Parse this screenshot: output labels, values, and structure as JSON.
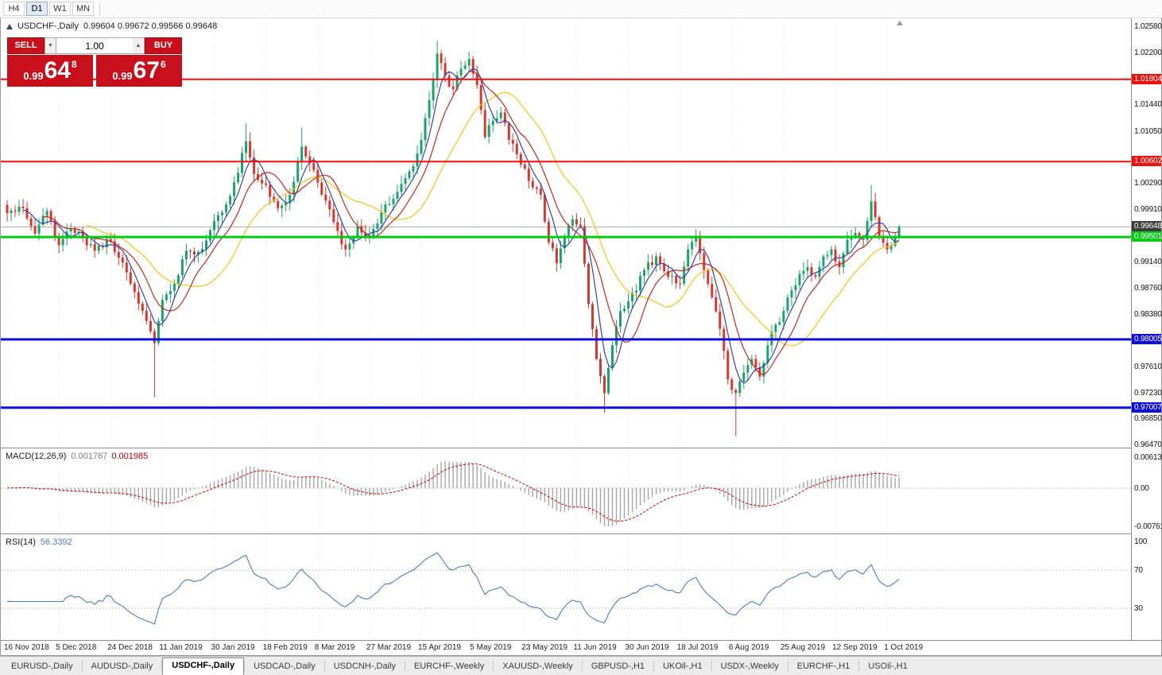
{
  "toolbar": {
    "timeframes": [
      {
        "label": "H4",
        "active": false
      },
      {
        "label": "D1",
        "active": true
      },
      {
        "label": "W1",
        "active": false
      },
      {
        "label": "MN",
        "active": false
      }
    ]
  },
  "chart": {
    "symbol": "USDCHF-,Daily",
    "ohlc_text": "0.99604 0.99672 0.99566 0.99648"
  },
  "trade_panel": {
    "sell_label": "SELL",
    "buy_label": "BUY",
    "volume": "1.00",
    "sell_price": {
      "prefix": "0.99",
      "big": "64",
      "sup": "8"
    },
    "buy_price": {
      "prefix": "0.99",
      "big": "67",
      "sup": "6"
    },
    "panel_color": "#c8101c"
  },
  "macd": {
    "label": "MACD(12,26,9)",
    "value_main": "0.001767",
    "value_signal": "0.001985",
    "scale": [
      {
        "label": "0.00613",
        "v": 0.00613
      },
      {
        "label": "0.00",
        "v": 0
      },
      {
        "label": "-0.00761",
        "v": -0.00761
      }
    ]
  },
  "rsi": {
    "label": "RSI(14)",
    "value": "56.3392",
    "color": "#4a7ebc",
    "scale": [
      {
        "label": "100",
        "v": 100
      },
      {
        "label": "70",
        "v": 70
      },
      {
        "label": "30",
        "v": 30
      }
    ]
  },
  "x_axis": {
    "labels": [
      {
        "label": "16 Nov 2018",
        "i": 0
      },
      {
        "label": "5 Dec 2018",
        "i": 13
      },
      {
        "label": "24 Dec 2018",
        "i": 26
      },
      {
        "label": "11 Jan 2019",
        "i": 39
      },
      {
        "label": "30 Jan 2019",
        "i": 52
      },
      {
        "label": "18 Feb 2019",
        "i": 65
      },
      {
        "label": "8 Mar 2019",
        "i": 78
      },
      {
        "label": "27 Mar 2019",
        "i": 91
      },
      {
        "label": "15 Apr 2019",
        "i": 104
      },
      {
        "label": "5 May 2019",
        "i": 117
      },
      {
        "label": "23 May 2019",
        "i": 130
      },
      {
        "label": "11 Jun 2019",
        "i": 143
      },
      {
        "label": "30 Jun 2019",
        "i": 156
      },
      {
        "label": "18 Jul 2019",
        "i": 169
      },
      {
        "label": "6 Aug 2019",
        "i": 182
      },
      {
        "label": "25 Aug 2019",
        "i": 195
      },
      {
        "label": "12 Sep 2019",
        "i": 208
      },
      {
        "label": "1 Oct 2019",
        "i": 221
      }
    ]
  },
  "tabs": [
    {
      "label": "EURUSD-,Daily",
      "active": false
    },
    {
      "label": "AUDUSD-,Daily",
      "active": false
    },
    {
      "label": "USDCHF-,Daily",
      "active": true
    },
    {
      "label": "USDCAD-,Daily",
      "active": false
    },
    {
      "label": "USDCNH-,Daily",
      "active": false
    },
    {
      "label": "EURCHF-,Weekly",
      "active": false
    },
    {
      "label": "XAUUSD-,Weekly",
      "active": false
    },
    {
      "label": "GBPUSD-,H1",
      "active": false
    },
    {
      "label": "UKOil-,H1",
      "active": false
    },
    {
      "label": "USDX-,Weekly",
      "active": false
    },
    {
      "label": "EURCHF-,H1",
      "active": false
    },
    {
      "label": "USOil-,H1",
      "active": false
    }
  ],
  "chart_data": {
    "type": "candlestick",
    "symbol": "USDCHF",
    "timeframe": "Daily",
    "current_bar": {
      "open": 0.99604,
      "high": 0.99672,
      "low": 0.99566,
      "close": 0.99648
    },
    "y_range": {
      "top": 1.0258,
      "bottom": 0.9647
    },
    "price_ticks": [
      {
        "label": "1.02580",
        "price": 1.0258
      },
      {
        "label": "1.02200",
        "price": 1.022
      },
      {
        "label": "1.01440",
        "price": 1.0144
      },
      {
        "label": "1.01050",
        "price": 1.0105
      },
      {
        "label": "1.00290",
        "price": 1.0029
      },
      {
        "label": "0.99910",
        "price": 0.9991
      },
      {
        "label": "0.99140",
        "price": 0.9914
      },
      {
        "label": "0.98760",
        "price": 0.9876
      },
      {
        "label": "0.98380",
        "price": 0.9838
      },
      {
        "label": "0.97610",
        "price": 0.9761
      },
      {
        "label": "0.97230",
        "price": 0.9723
      },
      {
        "label": "0.96850",
        "price": 0.9685
      },
      {
        "label": "0.96470",
        "price": 0.9647
      }
    ],
    "hlines": [
      {
        "price": 1.01804,
        "color": "#ee0f0f",
        "width": 2,
        "label": "1.01804"
      },
      {
        "price": 1.00602,
        "color": "#ee0f0f",
        "width": 2,
        "label": "1.00602"
      },
      {
        "price": 0.99501,
        "color": "#00cc11",
        "width": 3,
        "label": "0.99501"
      },
      {
        "price": 0.98005,
        "color": "#0d0de0",
        "width": 3,
        "label": "0.98005"
      },
      {
        "price": 0.97007,
        "color": "#0d0de0",
        "width": 3,
        "label": "0.97007"
      }
    ],
    "price_line": {
      "price": 0.99648,
      "color": "#ababab",
      "label": "0.99648",
      "label_bg": "#3c3c3c"
    },
    "colors": {
      "up": "#1ca26c",
      "down": "#d7382e"
    },
    "moving_averages": [
      {
        "period": 21,
        "color": "#f5c518"
      },
      {
        "period": 10,
        "color": "#c8281e"
      },
      {
        "period": 5,
        "color": "#3642a8"
      }
    ],
    "candles": {
      "count": 225,
      "seed": 11,
      "noise": 0.0013,
      "anchors": [
        [
          0,
          0.9985
        ],
        [
          4,
          0.9992
        ],
        [
          7,
          0.9955
        ],
        [
          10,
          0.9988
        ],
        [
          13,
          0.9938
        ],
        [
          16,
          0.9962
        ],
        [
          19,
          0.995
        ],
        [
          22,
          0.993
        ],
        [
          25,
          0.9947
        ],
        [
          28,
          0.992
        ],
        [
          31,
          0.9882
        ],
        [
          34,
          0.9842
        ],
        [
          37,
          0.9795
        ],
        [
          39,
          0.9858
        ],
        [
          42,
          0.9882
        ],
        [
          45,
          0.993
        ],
        [
          48,
          0.9928
        ],
        [
          51,
          0.996
        ],
        [
          54,
          0.9986
        ],
        [
          57,
          1.003
        ],
        [
          60,
          1.009
        ],
        [
          62,
          1.0042
        ],
        [
          65,
          1.0026
        ],
        [
          68,
          0.9992
        ],
        [
          71,
          1.0012
        ],
        [
          74,
          1.0082
        ],
        [
          76,
          1.0058
        ],
        [
          79,
          1.0012
        ],
        [
          82,
          0.9972
        ],
        [
          85,
          0.9932
        ],
        [
          88,
          0.9966
        ],
        [
          91,
          0.9952
        ],
        [
          94,
          0.9986
        ],
        [
          97,
          1.0006
        ],
        [
          100,
          1.0036
        ],
        [
          103,
          1.0072
        ],
        [
          106,
          1.015
        ],
        [
          108,
          1.0218
        ],
        [
          110,
          1.0186
        ],
        [
          112,
          1.0166
        ],
        [
          114,
          1.0196
        ],
        [
          116,
          1.021
        ],
        [
          118,
          1.0172
        ],
        [
          120,
          1.0096
        ],
        [
          122,
          1.012
        ],
        [
          124,
          1.0132
        ],
        [
          126,
          1.0092
        ],
        [
          129,
          1.0056
        ],
        [
          131,
          1.0032
        ],
        [
          134,
          1.0012
        ],
        [
          136,
          0.9942
        ],
        [
          138,
          0.9912
        ],
        [
          140,
          0.9952
        ],
        [
          142,
          0.9976
        ],
        [
          144,
          0.9966
        ],
        [
          146,
          0.9852
        ],
        [
          148,
          0.9772
        ],
        [
          150,
          0.9722
        ],
        [
          152,
          0.9792
        ],
        [
          154,
          0.9842
        ],
        [
          156,
          0.9856
        ],
        [
          158,
          0.9872
        ],
        [
          160,
          0.9902
        ],
        [
          163,
          0.9922
        ],
        [
          166,
          0.9892
        ],
        [
          169,
          0.9882
        ],
        [
          171,
          0.9932
        ],
        [
          173,
          0.9952
        ],
        [
          175,
          0.9902
        ],
        [
          177,
          0.9862
        ],
        [
          179,
          0.9816
        ],
        [
          181,
          0.9742
        ],
        [
          183,
          0.9722
        ],
        [
          185,
          0.9752
        ],
        [
          187,
          0.9772
        ],
        [
          189,
          0.9746
        ],
        [
          191,
          0.9792
        ],
        [
          193,
          0.9822
        ],
        [
          195,
          0.9842
        ],
        [
          197,
          0.9872
        ],
        [
          199,
          0.9896
        ],
        [
          201,
          0.9906
        ],
        [
          203,
          0.9892
        ],
        [
          205,
          0.9922
        ],
        [
          207,
          0.9932
        ],
        [
          209,
          0.9906
        ],
        [
          211,
          0.9946
        ],
        [
          213,
          0.9956
        ],
        [
          215,
          0.9946
        ],
        [
          217,
          1.0002
        ],
        [
          219,
          0.9952
        ],
        [
          221,
          0.9932
        ],
        [
          223,
          0.995
        ],
        [
          224,
          0.99648
        ]
      ],
      "wick_overrides": [
        {
          "i": 37,
          "low": 0.9716
        },
        {
          "i": 60,
          "high": 1.0116
        },
        {
          "i": 74,
          "high": 1.011
        },
        {
          "i": 108,
          "high": 1.0237
        },
        {
          "i": 150,
          "low": 0.9693
        },
        {
          "i": 183,
          "low": 0.9659
        },
        {
          "i": 217,
          "high": 1.0026
        }
      ]
    }
  }
}
